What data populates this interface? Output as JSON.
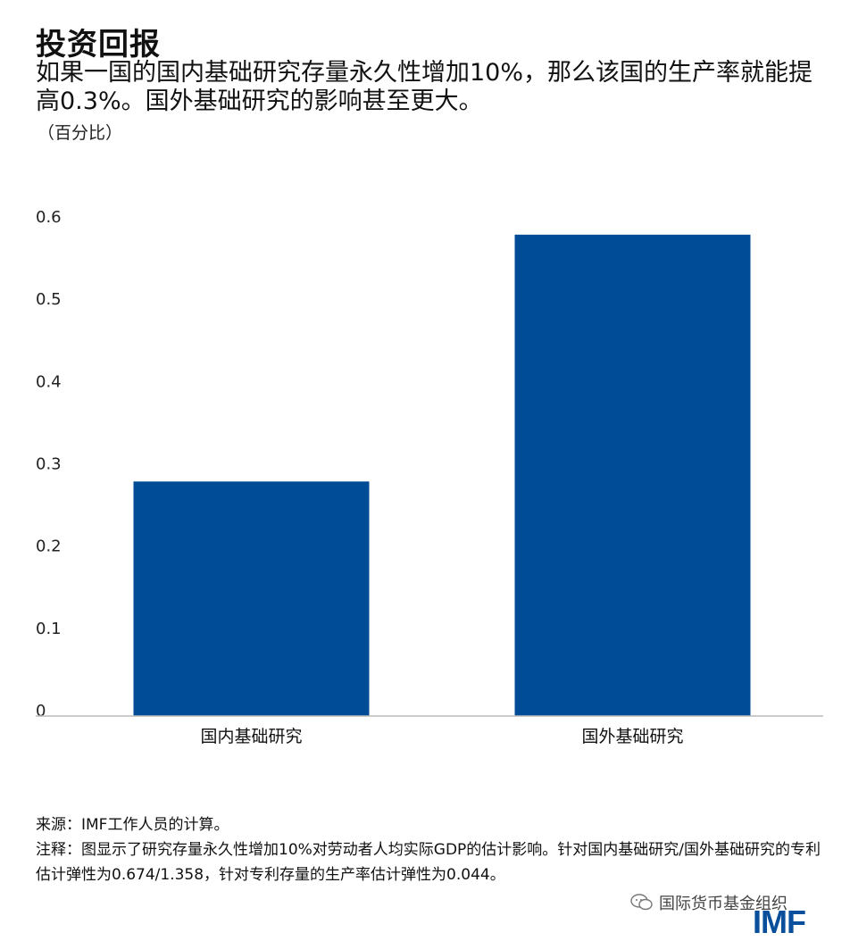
{
  "title": "投资回报",
  "subtitle": "如果一国的国内基础研究存量永久性增加10%，那么该国的生产率就能提高0.3%。国外基础研究的影响甚至更大。",
  "unit_label": "（百分比）",
  "chart_data": {
    "type": "bar",
    "categories": [
      "国内基础研究",
      "国外基础研究"
    ],
    "values": [
      0.285,
      0.585
    ],
    "ylim": [
      0,
      0.6
    ],
    "yticks": [
      "0",
      "0.1",
      "0.2",
      "0.3",
      "0.4",
      "0.5",
      "0.6"
    ],
    "bar_color": "#004c97",
    "grid": false
  },
  "notes": {
    "source": "来源：IMF工作人员的计算。",
    "note": "注释：图显示了研究存量永久性增加10%对劳动者人均实际GDP的估计影响。针对国内基础研究/国外基础研究的专利估计弹性为0.674/1.358，针对专利存量的生产率估计弹性为0.044。"
  },
  "watermark": {
    "icon": "wechat-icon",
    "text": "国际货币基金组织"
  },
  "logo_text": "IMF"
}
